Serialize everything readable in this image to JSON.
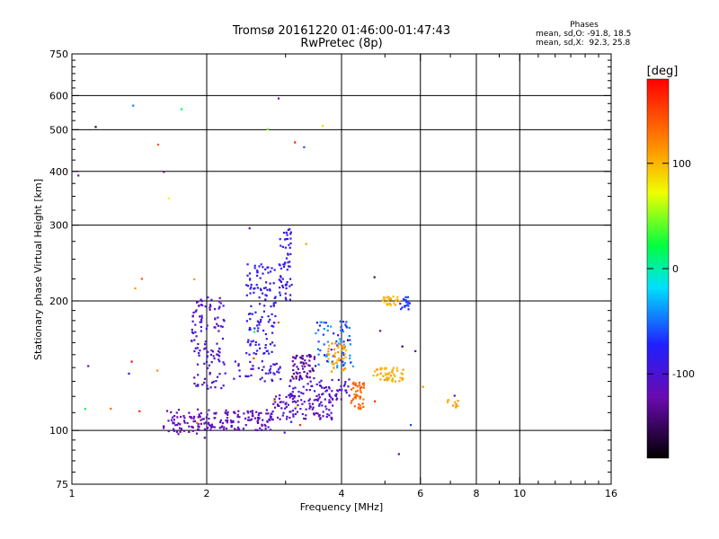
{
  "title": "Tromsø 20161220 01:46:00-01:47:43",
  "subtitle": "RwPretec (8p)",
  "phase_stats": {
    "heading": "Phases",
    "line1": "mean, sd,O: -91.8, 18.5",
    "line2": "mean, sd,X:  92.3, 25.8"
  },
  "colorbar": {
    "label": "[deg]",
    "ticks": [
      "100",
      "0",
      "-100"
    ],
    "tick_values": [
      100,
      0,
      -100
    ],
    "range": [
      -180,
      180
    ]
  },
  "chart_data": {
    "type": "scatter",
    "xlabel": "Frequency [MHz]",
    "ylabel": "Stationary phase Virtual Height [km]",
    "x_scale": "log",
    "y_scale": "log",
    "xlim": [
      1,
      16
    ],
    "ylim": [
      75,
      750
    ],
    "grid": true,
    "x_ticks": [
      1,
      2,
      4,
      6,
      8,
      10,
      16
    ],
    "x_tick_labels": [
      "1",
      "2",
      "4",
      "6",
      "8",
      "10",
      "16"
    ],
    "y_ticks": [
      75,
      100,
      200,
      300,
      400,
      500,
      600,
      750
    ],
    "y_tick_labels": [
      "75",
      "100",
      "200",
      "300",
      "400",
      "500",
      "600",
      "750"
    ],
    "color_encoding": "phase [deg]",
    "clusters": [
      {
        "x_range": [
          1.6,
          2.0
        ],
        "y_range": [
          98,
          112
        ],
        "phase_range": [
          -125,
          -110
        ],
        "n": 70
      },
      {
        "x_range": [
          2.0,
          2.8
        ],
        "y_range": [
          100,
          112
        ],
        "phase_range": [
          -120,
          -105
        ],
        "n": 110
      },
      {
        "x_range": [
          2.8,
          3.9
        ],
        "y_range": [
          106,
          122
        ],
        "phase_range": [
          -120,
          -100
        ],
        "n": 110
      },
      {
        "x_range": [
          3.0,
          4.2
        ],
        "y_range": [
          118,
          132
        ],
        "phase_range": [
          -110,
          -95
        ],
        "n": 60
      },
      {
        "x_range": [
          1.85,
          2.2
        ],
        "y_range": [
          125,
          205
        ],
        "phase_range": [
          -115,
          -90
        ],
        "n": 120
      },
      {
        "x_range": [
          2.45,
          2.85
        ],
        "y_range": [
          150,
          245
        ],
        "phase_range": [
          -95,
          -70
        ],
        "n": 120
      },
      {
        "x_range": [
          2.9,
          3.1
        ],
        "y_range": [
          200,
          295
        ],
        "phase_range": [
          -100,
          -70
        ],
        "n": 60
      },
      {
        "x_range": [
          2.3,
          3.0
        ],
        "y_range": [
          130,
          145
        ],
        "phase_range": [
          -110,
          -85
        ],
        "n": 40
      },
      {
        "x_range": [
          3.1,
          3.5
        ],
        "y_range": [
          132,
          150
        ],
        "phase_range": [
          -140,
          -120
        ],
        "n": 60
      },
      {
        "x_range": [
          3.5,
          4.2
        ],
        "y_range": [
          140,
          180
        ],
        "phase_range": [
          -85,
          -30
        ],
        "n": 70
      },
      {
        "x_range": [
          3.7,
          4.1
        ],
        "y_range": [
          135,
          160
        ],
        "phase_range": [
          95,
          125
        ],
        "n": 45
      },
      {
        "x_range": [
          4.2,
          4.5
        ],
        "y_range": [
          112,
          130
        ],
        "phase_range": [
          125,
          145
        ],
        "n": 45
      },
      {
        "x_range": [
          4.7,
          5.5
        ],
        "y_range": [
          130,
          140
        ],
        "phase_range": [
          95,
          115
        ],
        "n": 50
      },
      {
        "x_range": [
          4.9,
          5.4
        ],
        "y_range": [
          195,
          205
        ],
        "phase_range": [
          90,
          115
        ],
        "n": 25
      },
      {
        "x_range": [
          5.4,
          5.7
        ],
        "y_range": [
          190,
          205
        ],
        "phase_range": [
          -80,
          -50
        ],
        "n": 20
      },
      {
        "x_range": [
          6.9,
          7.3
        ],
        "y_range": [
          113,
          118
        ],
        "phase_range": [
          100,
          120
        ],
        "n": 10
      },
      {
        "x_range": [
          1.0,
          7.2
        ],
        "y_range": [
          80,
          620
        ],
        "phase_range": [
          -180,
          180
        ],
        "n": 45
      }
    ]
  }
}
